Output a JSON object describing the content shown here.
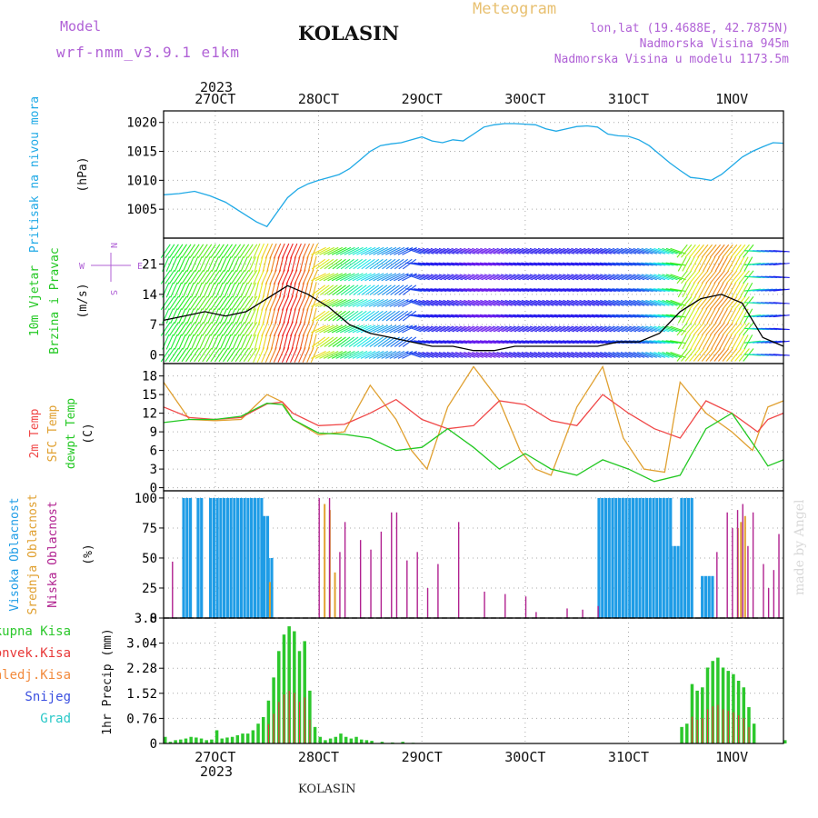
{
  "header": {
    "model_label": "Model",
    "model_value": "wrf-nmm_v3.9.1 e1km",
    "station": "KOLASIN",
    "product": "Meteogram",
    "lonlat": "lon,lat (19.4688E, 42.7875N)",
    "elevation": "Nadmorska Visina 945m",
    "model_elevation": "Nadmorska Visina u modelu 1173.5m",
    "footer_station": "KOLASIN",
    "watermark": "made by Angel"
  },
  "colors": {
    "pressure": "#1fa9e6",
    "temp2m": "#f04848",
    "sfc": "#e0a030",
    "dew": "#22c822",
    "cloud_high": "#1e9ce6",
    "cloud_mid": "#e0a030",
    "cloud_low": "#b0208f",
    "precip_total": "#2cc82c",
    "precip_conv": "#e83838",
    "label_model": "#b061d6",
    "label_meteo": "#e8c070",
    "wind_axis_purple": "#b061d6"
  },
  "chart_data": {
    "type": "line",
    "time_axis": {
      "year": "2023",
      "day_labels": [
        "27OCT",
        "28OCT",
        "29OCT",
        "30OCT",
        "31OCT",
        "1NOV"
      ],
      "day_pos": [
        0.5,
        1.5,
        2.5,
        3.5,
        4.5,
        5.5
      ],
      "range": [
        0,
        6.0
      ]
    },
    "panels": [
      {
        "id": "pressure",
        "ylabel": [
          "Pritisak na nivou mora",
          "(hPa)"
        ],
        "ticks": [
          1005,
          1010,
          1015,
          1020
        ],
        "ylim": [
          1000,
          1022
        ],
        "series": [
          {
            "name": "pressure",
            "x": [
              0,
              0.15,
              0.3,
              0.45,
              0.6,
              0.75,
              0.9,
              1.0,
              1.1,
              1.2,
              1.3,
              1.4,
              1.5,
              1.6,
              1.7,
              1.8,
              1.9,
              2.0,
              2.1,
              2.2,
              2.3,
              2.4,
              2.5,
              2.6,
              2.7,
              2.8,
              2.9,
              3.0,
              3.1,
              3.2,
              3.3,
              3.4,
              3.5,
              3.6,
              3.7,
              3.8,
              3.9,
              4.0,
              4.1,
              4.2,
              4.3,
              4.4,
              4.5,
              4.6,
              4.7,
              4.8,
              4.9,
              5.0,
              5.1,
              5.2,
              5.3,
              5.4,
              5.5,
              5.6,
              5.7,
              5.8,
              5.9,
              6.0
            ],
            "y": [
              1007.5,
              1007.7,
              1008.1,
              1007.3,
              1006.2,
              1004.5,
              1002.8,
              1002.0,
              1004.5,
              1007.0,
              1008.5,
              1009.4,
              1010.0,
              1010.5,
              1011.0,
              1012.0,
              1013.5,
              1015.0,
              1016.0,
              1016.3,
              1016.5,
              1017.0,
              1017.5,
              1016.8,
              1016.5,
              1017.0,
              1016.8,
              1018.0,
              1019.2,
              1019.6,
              1019.8,
              1019.8,
              1019.7,
              1019.6,
              1018.9,
              1018.5,
              1018.9,
              1019.3,
              1019.4,
              1019.2,
              1018.0,
              1017.7,
              1017.6,
              1017.0,
              1016.0,
              1014.5,
              1013.0,
              1011.7,
              1010.5,
              1010.3,
              1010.0,
              1011.0,
              1012.5,
              1014.0,
              1015.0,
              1015.8,
              1016.5,
              1016.4
            ]
          }
        ]
      },
      {
        "id": "wind",
        "ylabel": [
          "10m Vjetar",
          "Brzina i Pravac",
          "(m/s)"
        ],
        "ticks": [
          0,
          7,
          14,
          21
        ],
        "ylim": [
          -2,
          27
        ],
        "compass": [
          "N",
          "W",
          "E",
          "S"
        ],
        "series": [
          {
            "name": "wind_speed",
            "x": [
              0,
              0.2,
              0.4,
              0.6,
              0.8,
              1.0,
              1.2,
              1.4,
              1.6,
              1.8,
              2.0,
              2.2,
              2.4,
              2.6,
              2.8,
              3.0,
              3.2,
              3.4,
              3.6,
              3.8,
              4.0,
              4.2,
              4.4,
              4.6,
              4.8,
              5.0,
              5.2,
              5.4,
              5.6,
              5.8,
              6.0
            ],
            "y": [
              8,
              9,
              10,
              9,
              10,
              13,
              16,
              14,
              11,
              7,
              5,
              4,
              3,
              2,
              2,
              1,
              1,
              2,
              2,
              2,
              2,
              2,
              3,
              3,
              5,
              10,
              13,
              14,
              12,
              4,
              2
            ]
          }
        ]
      },
      {
        "id": "temp",
        "ylabel": [
          "2m Temp",
          "SFC Temp",
          "dewpt Temp",
          "(C)"
        ],
        "ticks": [
          0,
          3,
          6,
          9,
          12,
          15,
          18
        ],
        "ylim": [
          -0.5,
          20
        ],
        "series": [
          {
            "name": "2m Temp",
            "x": [
              0,
              0.25,
              0.5,
              0.75,
              1.0,
              1.15,
              1.25,
              1.5,
              1.75,
              2.0,
              2.25,
              2.5,
              2.75,
              3.0,
              3.25,
              3.5,
              3.75,
              4.0,
              4.25,
              4.5,
              4.75,
              5.0,
              5.25,
              5.5,
              5.75,
              5.85,
              6.0
            ],
            "y": [
              13,
              11.3,
              11,
              11.3,
              13.5,
              13.8,
              12,
              10,
              10.2,
              12,
              14.2,
              11,
              9.5,
              10,
              14,
              13.4,
              10.8,
              10,
              15,
              12,
              9.5,
              8,
              14,
              12,
              9,
              11,
              12
            ]
          },
          {
            "name": "SFC Temp",
            "x": [
              0,
              0.25,
              0.5,
              0.75,
              1.0,
              1.15,
              1.25,
              1.5,
              1.75,
              2.0,
              2.25,
              2.4,
              2.55,
              2.75,
              3.0,
              3.25,
              3.45,
              3.6,
              3.75,
              4.0,
              4.25,
              4.45,
              4.65,
              4.85,
              5.0,
              5.25,
              5.5,
              5.7,
              5.85,
              6.0
            ],
            "y": [
              17,
              11,
              10.8,
              11,
              15,
              13.8,
              11,
              8.5,
              9,
              16.5,
              11,
              6,
              3,
              13,
              19.5,
              14,
              6,
              3,
              2,
              13,
              19.5,
              8,
              3,
              2.5,
              17,
              12,
              9,
              6,
              13,
              14
            ]
          },
          {
            "name": "dewpt Temp",
            "x": [
              0,
              0.25,
              0.5,
              0.75,
              1.0,
              1.15,
              1.25,
              1.5,
              1.75,
              2.0,
              2.25,
              2.5,
              2.75,
              3.0,
              3.25,
              3.5,
              3.75,
              4.0,
              4.25,
              4.5,
              4.75,
              5.0,
              5.25,
              5.5,
              5.75,
              5.85,
              6.0
            ],
            "y": [
              10.5,
              11,
              11,
              11.5,
              13.6,
              13.4,
              11,
              8.8,
              8.6,
              8,
              6,
              6.5,
              9.5,
              6.5,
              3,
              5.5,
              3,
              2,
              4.5,
              3,
              1,
              2,
              9.5,
              12,
              6,
              3.5,
              4.5
            ]
          }
        ]
      },
      {
        "id": "cloud",
        "ylabel": [
          "Visoka Oblacnost",
          "Srednja Oblacnost",
          "Niska Oblacnost",
          "(%)"
        ],
        "ticks": [
          0,
          25,
          50,
          75,
          100
        ],
        "ylim": [
          0,
          106
        ],
        "high_segments": [
          [
            0.18,
            0.25,
            100
          ],
          [
            0.32,
            0.38,
            100
          ],
          [
            0.44,
            0.95,
            100
          ],
          [
            0.96,
            1.0,
            85
          ],
          [
            1.0,
            1.05,
            50
          ],
          [
            4.2,
            4.9,
            100
          ],
          [
            4.9,
            5.0,
            60
          ],
          [
            5.0,
            5.1,
            100
          ],
          [
            5.2,
            5.3,
            35
          ]
        ],
        "mid_bars": [
          [
            1.02,
            30
          ],
          [
            1.55,
            95
          ],
          [
            1.6,
            90
          ],
          [
            1.65,
            38
          ],
          [
            5.55,
            75
          ],
          [
            5.58,
            80
          ],
          [
            5.62,
            85
          ]
        ],
        "low_bars": [
          [
            0.08,
            47
          ],
          [
            1.5,
            100
          ],
          [
            1.6,
            100
          ],
          [
            1.7,
            55
          ],
          [
            1.75,
            80
          ],
          [
            1.9,
            65
          ],
          [
            2.0,
            57
          ],
          [
            2.1,
            72
          ],
          [
            2.2,
            88
          ],
          [
            2.25,
            88
          ],
          [
            2.35,
            48
          ],
          [
            2.45,
            55
          ],
          [
            2.55,
            25
          ],
          [
            2.65,
            45
          ],
          [
            2.85,
            80
          ],
          [
            3.1,
            22
          ],
          [
            3.3,
            20
          ],
          [
            3.5,
            18
          ],
          [
            3.6,
            5
          ],
          [
            3.9,
            8
          ],
          [
            4.05,
            7
          ],
          [
            4.2,
            10
          ],
          [
            5.35,
            55
          ],
          [
            5.45,
            88
          ],
          [
            5.5,
            75
          ],
          [
            5.55,
            90
          ],
          [
            5.6,
            95
          ],
          [
            5.65,
            60
          ],
          [
            5.7,
            88
          ],
          [
            5.8,
            45
          ],
          [
            5.85,
            25
          ],
          [
            5.9,
            40
          ],
          [
            5.95,
            70
          ]
        ]
      },
      {
        "id": "precip",
        "ylabel": [
          "1hr Precip (mm)"
        ],
        "legend": [
          "Ukupna Kisa",
          "Konvek.Kisa",
          "Zaledj.Kisa",
          "Snijeg",
          "Grad"
        ],
        "legend_colors": [
          "#2cc82c",
          "#e83838",
          "#f28a3c",
          "#3a4fe0",
          "#29c8c8"
        ],
        "ticks": [
          0,
          0.76,
          1.52,
          2.28,
          3.04,
          3.8
        ],
        "tick_labels": [
          "0",
          "0.76",
          "1.52",
          "2.28",
          "3.04",
          "3.8"
        ],
        "ylim": [
          0,
          3.8
        ],
        "bars": [
          [
            0.0,
            0.2
          ],
          [
            0.05,
            0.05
          ],
          [
            0.1,
            0.1
          ],
          [
            0.15,
            0.12
          ],
          [
            0.2,
            0.15
          ],
          [
            0.25,
            0.2
          ],
          [
            0.3,
            0.18
          ],
          [
            0.35,
            0.15
          ],
          [
            0.4,
            0.1
          ],
          [
            0.45,
            0.12
          ],
          [
            0.5,
            0.4
          ],
          [
            0.55,
            0.15
          ],
          [
            0.6,
            0.18
          ],
          [
            0.65,
            0.2
          ],
          [
            0.7,
            0.25
          ],
          [
            0.75,
            0.3
          ],
          [
            0.8,
            0.3
          ],
          [
            0.85,
            0.4
          ],
          [
            0.9,
            0.6
          ],
          [
            0.95,
            0.8
          ],
          [
            1.0,
            1.3
          ],
          [
            1.05,
            2.0
          ],
          [
            1.1,
            2.8
          ],
          [
            1.15,
            3.3
          ],
          [
            1.2,
            3.55
          ],
          [
            1.25,
            3.4
          ],
          [
            1.3,
            2.8
          ],
          [
            1.35,
            3.1
          ],
          [
            1.4,
            1.6
          ],
          [
            1.45,
            0.5
          ],
          [
            1.5,
            0.2
          ],
          [
            1.55,
            0.1
          ],
          [
            1.6,
            0.15
          ],
          [
            1.65,
            0.2
          ],
          [
            1.7,
            0.3
          ],
          [
            1.75,
            0.2
          ],
          [
            1.8,
            0.15
          ],
          [
            1.85,
            0.2
          ],
          [
            1.9,
            0.12
          ],
          [
            1.95,
            0.1
          ],
          [
            2.0,
            0.08
          ],
          [
            2.1,
            0.05
          ],
          [
            2.2,
            0.03
          ],
          [
            2.3,
            0.05
          ],
          [
            2.4,
            0.02
          ],
          [
            5.0,
            0.5
          ],
          [
            5.05,
            0.6
          ],
          [
            5.1,
            1.8
          ],
          [
            5.15,
            1.6
          ],
          [
            5.2,
            1.7
          ],
          [
            5.25,
            2.3
          ],
          [
            5.3,
            2.5
          ],
          [
            5.35,
            2.6
          ],
          [
            5.4,
            2.3
          ],
          [
            5.45,
            2.2
          ],
          [
            5.5,
            2.1
          ],
          [
            5.55,
            1.9
          ],
          [
            5.6,
            1.7
          ],
          [
            5.65,
            1.1
          ],
          [
            5.7,
            0.6
          ],
          [
            6.0,
            0.1
          ]
        ]
      }
    ]
  }
}
